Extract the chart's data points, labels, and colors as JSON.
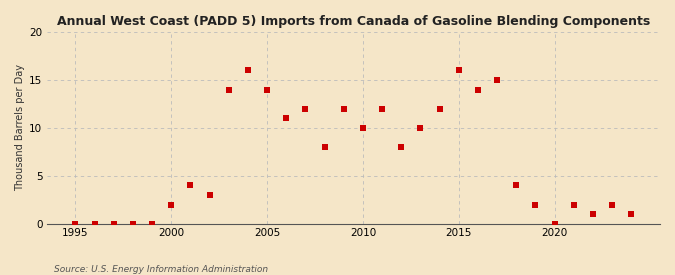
{
  "title": "Annual West Coast (PADD 5) Imports from Canada of Gasoline Blending Components",
  "ylabel": "Thousand Barrels per Day",
  "source": "Source: U.S. Energy Information Administration",
  "background_color": "#f5e6c8",
  "plot_bg_color": "#f5e6c8",
  "dot_color": "#cc0000",
  "grid_color": "#bbbbbb",
  "xlim": [
    1993.5,
    2025.5
  ],
  "ylim": [
    0,
    20
  ],
  "xticks": [
    1995,
    2000,
    2005,
    2010,
    2015,
    2020
  ],
  "yticks": [
    0,
    5,
    10,
    15,
    20
  ],
  "data": {
    "1995": 0,
    "1996": 0,
    "1997": 0,
    "1998": 0,
    "1999": 0,
    "2000": 2,
    "2001": 4,
    "2002": 3,
    "2003": 14,
    "2004": 16,
    "2005": 14,
    "2006": 11,
    "2007": 12,
    "2008": 8,
    "2009": 12,
    "2010": 10,
    "2011": 12,
    "2012": 8,
    "2013": 10,
    "2014": 12,
    "2015": 16,
    "2016": 14,
    "2017": 15,
    "2018": 4,
    "2019": 2,
    "2020": 0,
    "2021": 2,
    "2022": 1,
    "2023": 2,
    "2024": 1
  }
}
